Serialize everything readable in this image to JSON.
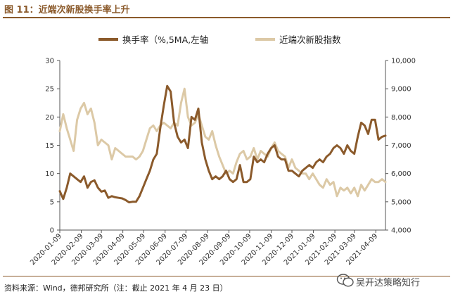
{
  "figure": {
    "title": "图 11：近端次新股换手率上升",
    "source": "资料来源：Wind，德邦研究所（注：截止 2021 年 4 月 23 日）",
    "watermark": "吴开达策略知行"
  },
  "colors": {
    "turnover": "#8b5a2b",
    "index": "#dcc9a6",
    "frame": "#8b5a2b"
  },
  "chart_data": {
    "type": "line",
    "x_ticks": [
      "2020-01-09",
      "2020-02-09",
      "2020-03-09",
      "2020-04-09",
      "2020-05-09",
      "2020-06-09",
      "2020-07-09",
      "2020-08-09",
      "2020-09-09",
      "2020-10-09",
      "2020-11-09",
      "2020-12-09",
      "2021-01-09",
      "2021-02-09",
      "2021-03-09",
      "2021-04-09"
    ],
    "xlim": [
      "2020-01-09",
      "2021-04-23"
    ],
    "left_axis": {
      "ylim": [
        0,
        30
      ],
      "ticks": [
        "0",
        "5",
        "10",
        "15",
        "20",
        "25",
        "30"
      ]
    },
    "right_axis": {
      "ylim": [
        4000,
        10000
      ],
      "ticks": [
        "4,000",
        "5,000",
        "6,000",
        "7,000",
        "8,000",
        "9,000",
        "10,000"
      ]
    },
    "legend_position": "top-center",
    "series": [
      {
        "name": "换手率（%,5MA,左轴",
        "axis": "left",
        "x": [
          "2020-01-09",
          "2020-01-14",
          "2020-01-19",
          "2020-01-24",
          "2020-01-29",
          "2020-02-03",
          "2020-02-08",
          "2020-02-13",
          "2020-02-18",
          "2020-02-23",
          "2020-02-28",
          "2020-03-04",
          "2020-03-09",
          "2020-03-14",
          "2020-03-19",
          "2020-03-24",
          "2020-03-29",
          "2020-04-03",
          "2020-04-08",
          "2020-04-13",
          "2020-04-18",
          "2020-04-23",
          "2020-04-28",
          "2020-05-03",
          "2020-05-08",
          "2020-05-13",
          "2020-05-18",
          "2020-05-23",
          "2020-05-28",
          "2020-06-02",
          "2020-06-07",
          "2020-06-12",
          "2020-06-17",
          "2020-06-22",
          "2020-06-27",
          "2020-07-02",
          "2020-07-07",
          "2020-07-12",
          "2020-07-17",
          "2020-07-22",
          "2020-07-27",
          "2020-08-01",
          "2020-08-06",
          "2020-08-11",
          "2020-08-16",
          "2020-08-21",
          "2020-08-26",
          "2020-08-31",
          "2020-09-05",
          "2020-09-10",
          "2020-09-15",
          "2020-09-20",
          "2020-09-25",
          "2020-09-30",
          "2020-10-05",
          "2020-10-10",
          "2020-10-15",
          "2020-10-20",
          "2020-10-25",
          "2020-10-30",
          "2020-11-04",
          "2020-11-09",
          "2020-11-14",
          "2020-11-19",
          "2020-11-24",
          "2020-11-29",
          "2020-12-04",
          "2020-12-09",
          "2020-12-14",
          "2020-12-19",
          "2020-12-24",
          "2020-12-29",
          "2021-01-03",
          "2021-01-08",
          "2021-01-13",
          "2021-01-18",
          "2021-01-23",
          "2021-01-28",
          "2021-02-02",
          "2021-02-07",
          "2021-02-12",
          "2021-02-17",
          "2021-02-22",
          "2021-02-27",
          "2021-03-04",
          "2021-03-09",
          "2021-03-14",
          "2021-03-19",
          "2021-03-24",
          "2021-03-29",
          "2021-04-03",
          "2021-04-08",
          "2021-04-13",
          "2021-04-18",
          "2021-04-23"
        ],
        "values": [
          6.9,
          5.5,
          7.5,
          10.0,
          9.5,
          9.0,
          8.5,
          9.5,
          7.5,
          8.5,
          8.8,
          7.5,
          6.8,
          7.0,
          5.7,
          6.0,
          5.8,
          5.7,
          5.6,
          5.3,
          4.9,
          5.0,
          5.0,
          6.0,
          7.5,
          9.0,
          10.5,
          12.5,
          13.5,
          18.0,
          22.0,
          25.5,
          24.5,
          19.0,
          16.5,
          15.5,
          16.0,
          14.5,
          20.0,
          19.5,
          21.5,
          15.5,
          12.5,
          10.5,
          9.0,
          9.5,
          9.0,
          9.5,
          10.5,
          9.0,
          8.5,
          9.0,
          11.5,
          8.5,
          8.5,
          9.0,
          13.0,
          12.0,
          12.5,
          12.0,
          13.5,
          14.5,
          15.0,
          13.0,
          12.5,
          12.5,
          10.5,
          10.5,
          10.0,
          9.5,
          10.5,
          11.0,
          11.5,
          11.0,
          12.0,
          12.5,
          12.0,
          13.0,
          13.5,
          14.5,
          15.0,
          14.5,
          13.5,
          15.0,
          14.0,
          13.5,
          16.5,
          19.0,
          18.5,
          17.0,
          19.5,
          19.5,
          16.0,
          16.5,
          16.7
        ]
      },
      {
        "name": "近端次新股指数",
        "axis": "right",
        "x": [
          "2020-01-09",
          "2020-01-14",
          "2020-01-19",
          "2020-01-24",
          "2020-01-29",
          "2020-02-03",
          "2020-02-08",
          "2020-02-13",
          "2020-02-18",
          "2020-02-23",
          "2020-02-28",
          "2020-03-04",
          "2020-03-09",
          "2020-03-14",
          "2020-03-19",
          "2020-03-24",
          "2020-03-29",
          "2020-04-03",
          "2020-04-08",
          "2020-04-13",
          "2020-04-18",
          "2020-04-23",
          "2020-04-28",
          "2020-05-03",
          "2020-05-08",
          "2020-05-13",
          "2020-05-18",
          "2020-05-23",
          "2020-05-28",
          "2020-06-02",
          "2020-06-07",
          "2020-06-12",
          "2020-06-17",
          "2020-06-22",
          "2020-06-27",
          "2020-07-02",
          "2020-07-07",
          "2020-07-12",
          "2020-07-17",
          "2020-07-22",
          "2020-07-27",
          "2020-08-01",
          "2020-08-06",
          "2020-08-11",
          "2020-08-16",
          "2020-08-21",
          "2020-08-26",
          "2020-08-31",
          "2020-09-05",
          "2020-09-10",
          "2020-09-15",
          "2020-09-20",
          "2020-09-25",
          "2020-09-30",
          "2020-10-05",
          "2020-10-10",
          "2020-10-15",
          "2020-10-20",
          "2020-10-25",
          "2020-10-30",
          "2020-11-04",
          "2020-11-09",
          "2020-11-14",
          "2020-11-19",
          "2020-11-24",
          "2020-11-29",
          "2020-12-04",
          "2020-12-09",
          "2020-12-14",
          "2020-12-19",
          "2020-12-24",
          "2020-12-29",
          "2021-01-03",
          "2021-01-08",
          "2021-01-13",
          "2021-01-18",
          "2021-01-23",
          "2021-01-28",
          "2021-02-02",
          "2021-02-07",
          "2021-02-12",
          "2021-02-17",
          "2021-02-22",
          "2021-02-27",
          "2021-03-04",
          "2021-03-09",
          "2021-03-14",
          "2021-03-19",
          "2021-03-24",
          "2021-03-29",
          "2021-04-03",
          "2021-04-08",
          "2021-04-13",
          "2021-04-18",
          "2021-04-23"
        ],
        "values": [
          7500,
          8100,
          7600,
          7200,
          6800,
          7900,
          8300,
          8500,
          8100,
          8300,
          7800,
          7000,
          7200,
          7100,
          7000,
          6500,
          6900,
          6800,
          6700,
          6600,
          6600,
          6600,
          6500,
          6600,
          6800,
          7200,
          7600,
          7700,
          7500,
          7700,
          7800,
          7700,
          7600,
          7800,
          7700,
          8500,
          9000,
          8000,
          7700,
          7800,
          8100,
          7700,
          7300,
          7200,
          7500,
          7000,
          6600,
          6300,
          6000,
          6100,
          6000,
          6400,
          6700,
          6800,
          6500,
          6600,
          6900,
          6500,
          6800,
          6700,
          6600,
          6900,
          7100,
          6800,
          6700,
          6600,
          6200,
          6500,
          6200,
          6100,
          6000,
          6000,
          5800,
          6000,
          5800,
          5600,
          5500,
          5800,
          5600,
          5700,
          5200,
          5500,
          5400,
          5500,
          5300,
          5500,
          5200,
          5600,
          5400,
          5600,
          5800,
          5700,
          5700,
          5800,
          5700
        ]
      }
    ]
  }
}
